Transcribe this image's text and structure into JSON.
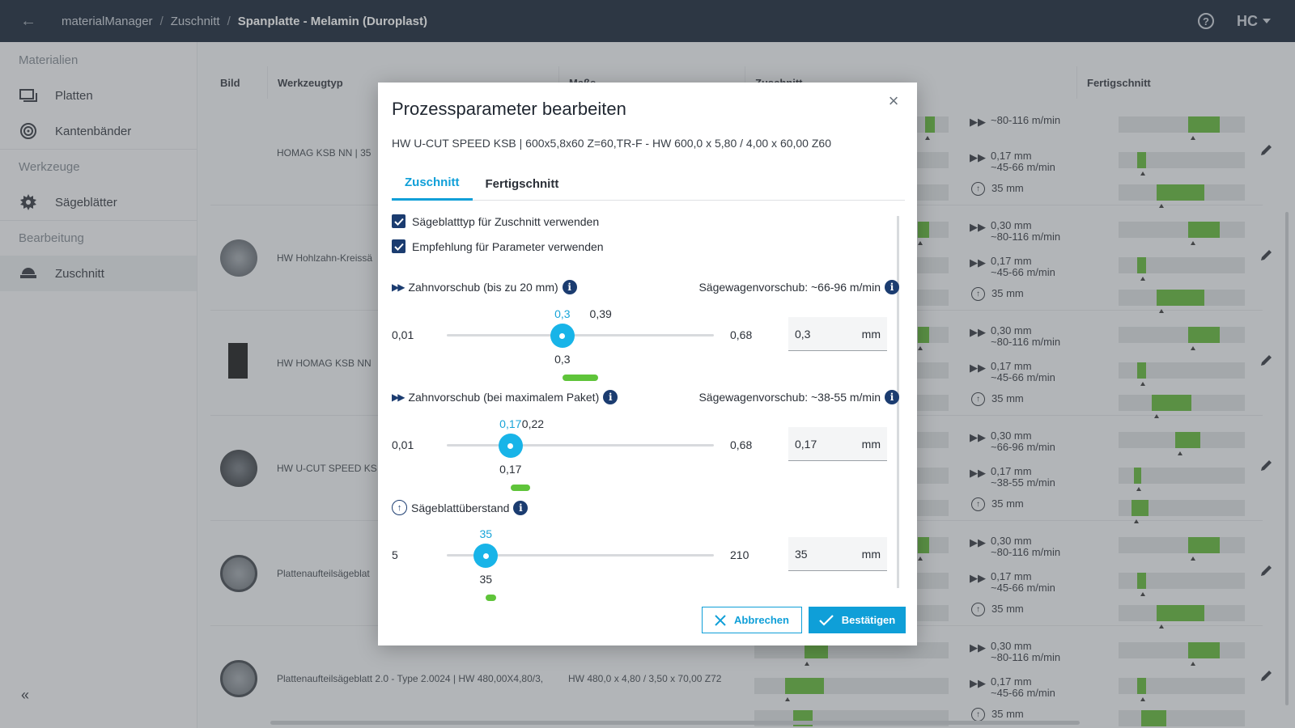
{
  "topbar": {
    "breadcrumb": [
      "materialManager",
      "Zuschnitt",
      "Spanplatte - Melamin (Duroplast)"
    ],
    "brand": "HC"
  },
  "sidebar": {
    "sections": [
      {
        "label": "Materialien",
        "items": [
          {
            "label": "Platten",
            "icon": "board-icon"
          },
          {
            "label": "Kantenbänder",
            "icon": "edgeband-icon"
          }
        ]
      },
      {
        "label": "Werkzeuge",
        "items": [
          {
            "label": "Sägeblätter",
            "icon": "sawblade-icon"
          }
        ]
      },
      {
        "label": "Bearbeitung",
        "items": [
          {
            "label": "Zuschnitt",
            "icon": "cutting-icon",
            "active": true
          }
        ]
      }
    ],
    "collapse": "«"
  },
  "table": {
    "columns": [
      "Bild",
      "Werkzeugtyp",
      "Maße",
      "Zuschnitt",
      "Fertigschnitt"
    ],
    "rows": [
      {
        "name": "HOMAG KSB NN | 35",
        "dims": "",
        "thumb": "none",
        "lines": [
          {
            "a": "",
            "b": "~80-116 m/min"
          },
          {
            "a": "0,17 mm",
            "b": "~45-66 m/min"
          },
          {
            "a": "35 mm",
            "b": ""
          }
        ]
      },
      {
        "name": "HW Hohlzahn-Kreissä",
        "dims": "",
        "thumb": "circle",
        "lines": [
          {
            "a": "0,30 mm",
            "b": "~80-116 m/min"
          },
          {
            "a": "0,17 mm",
            "b": "~45-66 m/min"
          },
          {
            "a": "35 mm",
            "b": ""
          }
        ]
      },
      {
        "name": "HW HOMAG KSB NN",
        "dims": "",
        "thumb": "rect",
        "lines": [
          {
            "a": "0,30 mm",
            "b": "~80-116 m/min"
          },
          {
            "a": "0,17 mm",
            "b": "~45-66 m/min"
          },
          {
            "a": "35 mm",
            "b": ""
          }
        ]
      },
      {
        "name": "HW U-CUT SPEED KS",
        "dims": "",
        "thumb": "dark",
        "lines": [
          {
            "a": "0,30 mm",
            "b": "~66-96 m/min"
          },
          {
            "a": "0,17 mm",
            "b": "~38-55 m/min"
          },
          {
            "a": "35 mm",
            "b": ""
          }
        ]
      },
      {
        "name": "Plattenaufteilsägeblat",
        "dims": "",
        "thumb": "ring",
        "lines": [
          {
            "a": "0,30 mm",
            "b": "~80-116 m/min"
          },
          {
            "a": "0,17 mm",
            "b": "~45-66 m/min"
          },
          {
            "a": "35 mm",
            "b": ""
          }
        ]
      },
      {
        "name": "Plattenaufteilsägeblatt 2.0 - Type 2.0024 | HW 480,00X4,80/3,",
        "dims": "HW 480,0 x 4,80 / 3,50 x 70,00 Z72",
        "thumb": "ring",
        "lines": [
          {
            "a": "0,30 mm",
            "b": "~80-116 m/min"
          },
          {
            "a": "0,17 mm",
            "b": "~45-66 m/min"
          },
          {
            "a": "35 mm",
            "b": ""
          }
        ]
      }
    ]
  },
  "modal": {
    "title": "Prozessparameter bearbeiten",
    "subtitle": "HW U-CUT SPEED KSB | 600x5,8x60 Z=60,TR-F - HW 600,0 x 5,80 / 4,00 x 60,00 Z60",
    "tabs": [
      "Zuschnitt",
      "Fertigschnitt"
    ],
    "checkboxes": [
      "Sägeblatttyp für Zuschnitt verwenden",
      "Empfehlung für Parameter verwenden"
    ],
    "sliders": [
      {
        "label": "Zahnvorschub (bis zu 20 mm)",
        "right_label": "Sägewagenvorschub: ~66-96 m/min",
        "min": "0,01",
        "max": "0,68",
        "value": "0,3",
        "recommended_max": "0,39",
        "input": "0,3",
        "unit": "mm",
        "min_num": 0.01,
        "max_num": 0.68,
        "value_num": 0.3,
        "rec_num": 0.39
      },
      {
        "label": "Zahnvorschub (bei maximalem Paket)",
        "right_label": "Sägewagenvorschub: ~38-55 m/min",
        "min": "0,01",
        "max": "0,68",
        "value": "0,17",
        "recommended_max": "0,22",
        "input": "0,17",
        "unit": "mm",
        "min_num": 0.01,
        "max_num": 0.68,
        "value_num": 0.17,
        "rec_num": 0.22
      },
      {
        "label": "Sägeblattüberstand",
        "right_label": "",
        "min": "5",
        "max": "210",
        "value": "35",
        "recommended_max": "",
        "input": "35",
        "unit": "mm",
        "min_num": 5,
        "max_num": 210,
        "value_num": 35,
        "rec_num": 43
      }
    ],
    "buttons": {
      "cancel": "Abbrechen",
      "confirm": "Bestätigen"
    }
  },
  "colors": {
    "accent": "#0f9fd8",
    "navy": "#0d1b2e",
    "green": "#5ab42e",
    "info": "#1b3c70"
  }
}
